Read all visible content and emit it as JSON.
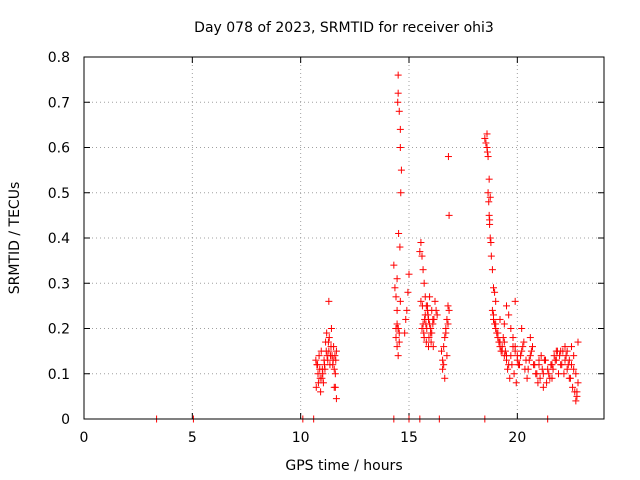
{
  "chart_data": {
    "type": "scatter",
    "title": "Day 078 of 2023, SRMTID for receiver ohi3",
    "xlabel": "GPS time / hours",
    "ylabel": "SRMTID / TECUs",
    "xlim": [
      0,
      24
    ],
    "ylim": [
      0,
      0.8
    ],
    "xticks": [
      0,
      5,
      10,
      15,
      20
    ],
    "yticks": [
      0,
      0.1,
      0.2,
      0.3,
      0.4,
      0.5,
      0.6,
      0.7,
      0.8
    ],
    "xtick_labels": [
      "0",
      "5",
      "10",
      "15",
      "20"
    ],
    "ytick_labels": [
      "0",
      "0.1",
      "0.2",
      "0.3",
      "0.4",
      "0.5",
      "0.6",
      "0.7",
      "0.8"
    ],
    "grid": true,
    "series": [
      {
        "name": "SRMTID",
        "color": "#ff0000",
        "marker": "+",
        "x": [
          3.35,
          5.05,
          10.1,
          10.6,
          14.3,
          15.0,
          15.5,
          16.4,
          18.5,
          21.4,
          10.7,
          10.75,
          10.8,
          10.85,
          10.9,
          10.95,
          11.0,
          11.05,
          11.1,
          11.15,
          11.2,
          11.25,
          11.3,
          11.35,
          11.4,
          11.45,
          11.5,
          11.55,
          11.6,
          11.65,
          10.72,
          10.82,
          10.92,
          11.02,
          11.12,
          11.22,
          11.32,
          11.42,
          11.52,
          11.62,
          10.78,
          10.88,
          10.98,
          11.08,
          11.18,
          11.28,
          11.38,
          11.48,
          11.58,
          11.3,
          11.55,
          11.6,
          11.65,
          14.3,
          14.35,
          14.4,
          14.45,
          14.5,
          14.5,
          14.5,
          14.55,
          14.6,
          14.6,
          14.65,
          14.4,
          14.45,
          14.5,
          14.55,
          14.48,
          14.52,
          14.58,
          14.62,
          14.45,
          14.5,
          14.55,
          14.4,
          14.45,
          14.6,
          14.8,
          14.85,
          14.9,
          14.95,
          15.0,
          15.5,
          15.55,
          15.6,
          15.65,
          15.7,
          15.75,
          15.8,
          15.85,
          15.9,
          15.95,
          16.0,
          16.05,
          16.1,
          16.15,
          16.2,
          16.25,
          16.3,
          15.6,
          15.7,
          15.8,
          15.9,
          16.0,
          16.1,
          15.65,
          15.75,
          15.85,
          15.95,
          16.05,
          15.55,
          15.62,
          15.72,
          15.82,
          15.92,
          16.02,
          16.12,
          15.68,
          15.78,
          15.88,
          16.5,
          16.55,
          16.6,
          16.65,
          16.7,
          16.75,
          16.8,
          16.85,
          16.55,
          16.65,
          16.75,
          16.6,
          16.7,
          16.8,
          16.82,
          16.85,
          18.5,
          18.55,
          18.6,
          18.62,
          18.65,
          18.68,
          18.7,
          18.72,
          18.75,
          18.8,
          18.85,
          18.9,
          18.95,
          19.0,
          18.6,
          18.65,
          18.7,
          18.75,
          18.72,
          18.78,
          18.85,
          18.9,
          18.95,
          19.0,
          19.05,
          19.1,
          19.15,
          19.2,
          19.25,
          19.3,
          19.35,
          19.4,
          19.45,
          19.5,
          18.9,
          19.0,
          19.1,
          19.2,
          19.3,
          19.4,
          19.5,
          19.6,
          19.7,
          19.8,
          19.9,
          20.0,
          19.5,
          19.6,
          19.7,
          19.8,
          19.9,
          20.0,
          20.1,
          20.2,
          20.3,
          20.4,
          20.5,
          20.6,
          20.7,
          20.8,
          20.9,
          21.0,
          19.55,
          19.65,
          19.75,
          19.85,
          19.95,
          20.05,
          20.15,
          20.25,
          20.35,
          20.45,
          20.55,
          20.65,
          20.75,
          20.85,
          20.95,
          21.0,
          21.1,
          21.2,
          21.3,
          21.4,
          21.5,
          21.6,
          21.7,
          21.8,
          21.9,
          22.0,
          22.1,
          22.2,
          22.3,
          22.4,
          22.5,
          22.6,
          22.7,
          22.8,
          21.05,
          21.15,
          21.25,
          21.35,
          21.45,
          21.55,
          21.65,
          21.75,
          21.85,
          21.95,
          22.05,
          22.15,
          22.25,
          22.35,
          22.45,
          22.55,
          22.65,
          22.75,
          21.2,
          21.6,
          22.0,
          22.2,
          22.4,
          22.6,
          22.7,
          22.75,
          22.8,
          22.5,
          22.3,
          21.8,
          19.2,
          19.4,
          19.9,
          20.2,
          20.6
        ],
        "y": [
          0.0,
          0.0,
          0.0,
          0.0,
          0.0,
          0.0,
          0.0,
          0.0,
          0.0,
          0.0,
          0.13,
          0.12,
          0.1,
          0.14,
          0.09,
          0.15,
          0.11,
          0.08,
          0.12,
          0.17,
          0.19,
          0.13,
          0.15,
          0.12,
          0.16,
          0.14,
          0.13,
          0.11,
          0.1,
          0.15,
          0.07,
          0.08,
          0.06,
          0.1,
          0.11,
          0.14,
          0.18,
          0.2,
          0.16,
          0.13,
          0.12,
          0.11,
          0.09,
          0.13,
          0.15,
          0.17,
          0.14,
          0.12,
          0.14,
          0.26,
          0.07,
          0.07,
          0.045,
          0.34,
          0.29,
          0.27,
          0.24,
          0.2,
          0.76,
          0.72,
          0.68,
          0.64,
          0.6,
          0.55,
          0.18,
          0.16,
          0.14,
          0.17,
          0.7,
          0.41,
          0.38,
          0.5,
          0.21,
          0.2,
          0.19,
          0.2,
          0.31,
          0.26,
          0.19,
          0.22,
          0.24,
          0.28,
          0.32,
          0.37,
          0.39,
          0.36,
          0.33,
          0.3,
          0.27,
          0.25,
          0.24,
          0.22,
          0.21,
          0.2,
          0.19,
          0.21,
          0.22,
          0.26,
          0.24,
          0.23,
          0.2,
          0.18,
          0.17,
          0.16,
          0.19,
          0.22,
          0.21,
          0.23,
          0.25,
          0.27,
          0.24,
          0.26,
          0.25,
          0.22,
          0.2,
          0.18,
          0.17,
          0.16,
          0.19,
          0.21,
          0.23,
          0.15,
          0.13,
          0.12,
          0.18,
          0.2,
          0.22,
          0.25,
          0.24,
          0.11,
          0.09,
          0.14,
          0.16,
          0.19,
          0.21,
          0.58,
          0.45,
          0.62,
          0.61,
          0.6,
          0.59,
          0.5,
          0.48,
          0.45,
          0.44,
          0.4,
          0.36,
          0.33,
          0.29,
          0.28,
          0.26,
          0.63,
          0.58,
          0.53,
          0.49,
          0.43,
          0.39,
          0.24,
          0.22,
          0.21,
          0.2,
          0.19,
          0.18,
          0.17,
          0.16,
          0.15,
          0.16,
          0.18,
          0.17,
          0.15,
          0.14,
          0.23,
          0.21,
          0.19,
          0.17,
          0.15,
          0.14,
          0.13,
          0.12,
          0.14,
          0.16,
          0.15,
          0.13,
          0.25,
          0.23,
          0.2,
          0.18,
          0.16,
          0.14,
          0.12,
          0.15,
          0.17,
          0.13,
          0.11,
          0.14,
          0.16,
          0.12,
          0.1,
          0.13,
          0.11,
          0.09,
          0.12,
          0.1,
          0.08,
          0.12,
          0.14,
          0.16,
          0.11,
          0.09,
          0.13,
          0.15,
          0.12,
          0.1,
          0.08,
          0.12,
          0.14,
          0.1,
          0.13,
          0.11,
          0.09,
          0.12,
          0.14,
          0.13,
          0.1,
          0.12,
          0.15,
          0.13,
          0.11,
          0.09,
          0.12,
          0.14,
          0.1,
          0.08,
          0.09,
          0.11,
          0.13,
          0.08,
          0.1,
          0.12,
          0.11,
          0.13,
          0.15,
          0.14,
          0.12,
          0.1,
          0.14,
          0.12,
          0.09,
          0.07,
          0.06,
          0.05,
          0.07,
          0.09,
          0.15,
          0.16,
          0.13,
          0.11,
          0.04,
          0.06,
          0.17,
          0.16,
          0.15,
          0.15,
          0.22,
          0.21,
          0.26,
          0.2,
          0.18
        ]
      }
    ]
  }
}
